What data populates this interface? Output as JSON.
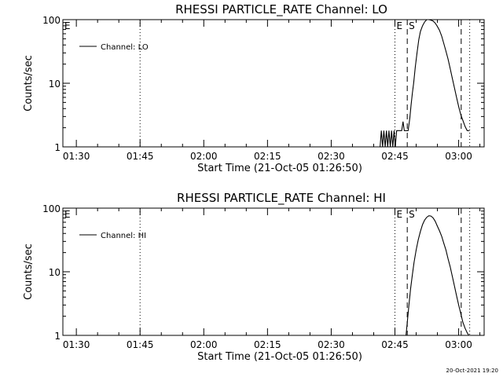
{
  "footer": {
    "timestamp": "20-Oct-2021 19:20"
  },
  "chart_data": [
    {
      "type": "line",
      "title": "RHESSI PARTICLE_RATE Channel: LO",
      "xlabel": "Start Time (21-Oct-05 01:26:50)",
      "ylabel": "Counts/sec",
      "y_scale": "log",
      "x_unit": "minutes",
      "xlim": [
        86.83,
        186
      ],
      "ylim": [
        1,
        100
      ],
      "x_ticks": [
        90,
        105,
        120,
        135,
        150,
        165,
        180
      ],
      "x_tick_labels": [
        "01:30",
        "01:45",
        "02:00",
        "02:15",
        "02:30",
        "02:45",
        "03:00"
      ],
      "y_ticks": [
        1,
        10,
        100
      ],
      "y_tick_labels": [
        "1",
        "10",
        "100"
      ],
      "legend": {
        "position": "top-left",
        "entries": [
          "Channel: LO"
        ]
      },
      "series": [
        {
          "name": "Channel: LO",
          "x": [
            161.5,
            161.8,
            162.1,
            162.4,
            162.7,
            163.0,
            163.3,
            163.6,
            163.9,
            164.2,
            164.5,
            164.8,
            165.1,
            165.4,
            165.7,
            166.0,
            166.3,
            166.6,
            166.9,
            167.2,
            167.5,
            167.8,
            168.1,
            168.5,
            168.8,
            169.1,
            169.4,
            169.8,
            170.2,
            170.6,
            171.0,
            171.5,
            172.0,
            172.5,
            173.0,
            173.5,
            174.0,
            174.5,
            175.0,
            175.5,
            176.0,
            176.5,
            177.0,
            177.5,
            178.0,
            178.5,
            179.0,
            179.5,
            180.0,
            180.5,
            181.0,
            181.5,
            182.0,
            182.5
          ],
          "values": [
            1,
            1.8,
            1,
            1.8,
            1,
            1.8,
            1,
            1.8,
            1,
            1.8,
            1,
            1.8,
            1,
            1.8,
            1.8,
            1.8,
            1.8,
            1.8,
            2.5,
            1.8,
            1.8,
            1.8,
            1.8,
            2.8,
            4.5,
            7,
            10,
            18,
            30,
            48,
            65,
            80,
            92,
            100,
            100,
            98,
            95,
            88,
            78,
            68,
            55,
            42,
            32,
            24,
            17,
            12,
            8.5,
            6,
            4.3,
            3.2,
            2.6,
            2.1,
            1.8,
            1.8
          ]
        }
      ],
      "markers": [
        {
          "x": 105,
          "style": "dotted",
          "label": ""
        },
        {
          "x": 86.83,
          "style": "none",
          "label": "E"
        },
        {
          "x": 165,
          "style": "dotted",
          "label": "E"
        },
        {
          "x": 167.9,
          "style": "dashed",
          "label": "S"
        },
        {
          "x": 180.6,
          "style": "dashed",
          "label": ""
        },
        {
          "x": 182.6,
          "style": "dotted",
          "label": ""
        }
      ]
    },
    {
      "type": "line",
      "title": "RHESSI PARTICLE_RATE Channel: HI",
      "xlabel": "Start Time (21-Oct-05 01:26:50)",
      "ylabel": "Counts/sec",
      "y_scale": "log",
      "x_unit": "minutes",
      "xlim": [
        86.83,
        186
      ],
      "ylim": [
        1,
        100
      ],
      "x_ticks": [
        90,
        105,
        120,
        135,
        150,
        165,
        180
      ],
      "x_tick_labels": [
        "01:30",
        "01:45",
        "02:00",
        "02:15",
        "02:30",
        "02:45",
        "03:00"
      ],
      "y_ticks": [
        1,
        10,
        100
      ],
      "y_tick_labels": [
        "1",
        "10",
        "100"
      ],
      "legend": {
        "position": "top-left",
        "entries": [
          "Channel: HI"
        ]
      },
      "series": [
        {
          "name": "Channel: HI",
          "x": [
            167.6,
            167.9,
            168.3,
            168.7,
            169.1,
            169.5,
            170.0,
            170.5,
            171.0,
            171.5,
            172.0,
            172.5,
            173.0,
            173.5,
            174.0,
            174.5,
            175.0,
            175.5,
            176.0,
            176.5,
            177.0,
            177.5,
            178.0,
            178.5,
            179.0,
            179.5,
            180.0,
            180.5,
            181.0,
            181.5,
            182.0,
            182.4
          ],
          "values": [
            1,
            1.6,
            3,
            5.5,
            9,
            14,
            22,
            32,
            43,
            55,
            65,
            72,
            76,
            75,
            70,
            62,
            52,
            44,
            36,
            28,
            22,
            16,
            12,
            8.5,
            6,
            4.2,
            3,
            2.2,
            1.6,
            1.3,
            1.1,
            1
          ]
        }
      ],
      "markers": [
        {
          "x": 105,
          "style": "dotted",
          "label": ""
        },
        {
          "x": 86.83,
          "style": "none",
          "label": "E"
        },
        {
          "x": 165,
          "style": "dotted",
          "label": "E"
        },
        {
          "x": 167.9,
          "style": "dashed",
          "label": "S"
        },
        {
          "x": 180.6,
          "style": "dashed",
          "label": ""
        },
        {
          "x": 182.6,
          "style": "dotted",
          "label": ""
        }
      ]
    }
  ]
}
